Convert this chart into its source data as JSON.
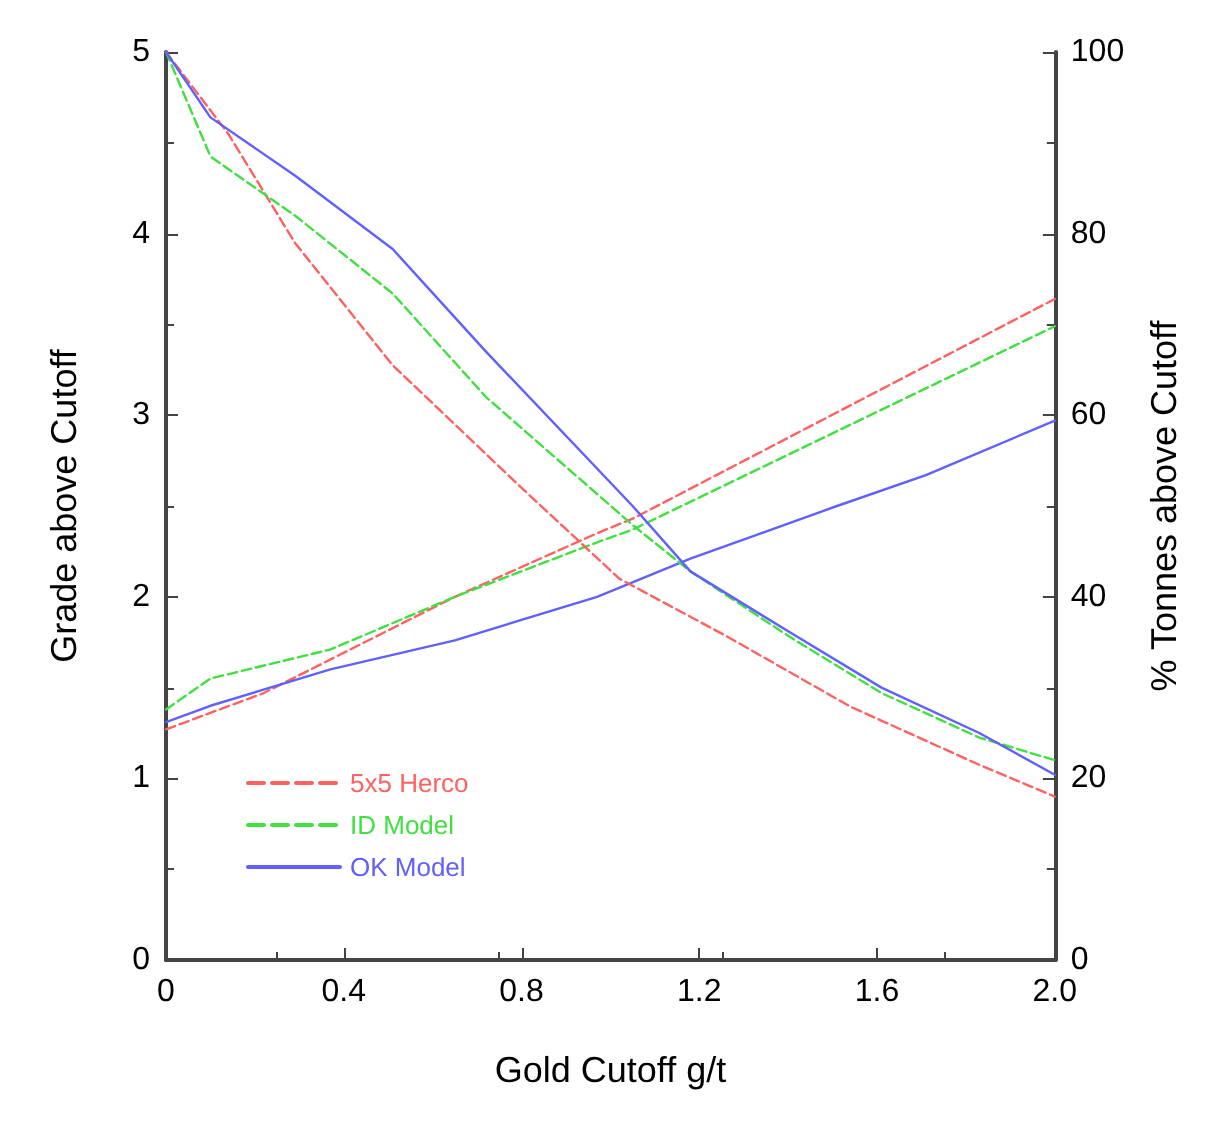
{
  "chart_data": {
    "type": "line",
    "xlabel": "Gold Cutoff g/t",
    "ylabel": "Grade above Cutoff",
    "y2label": "% Tonnes above Cutoff",
    "xlim": [
      0,
      2
    ],
    "xticks": [
      0,
      0.4,
      0.8,
      1.2,
      1.6,
      {
        "value": 2,
        "label": "2.0"
      }
    ],
    "ylim": [
      0,
      5
    ],
    "yticks": [
      0,
      1,
      2,
      3,
      4,
      5
    ],
    "y2lim": [
      0,
      100
    ],
    "y2ticks": [
      0,
      20,
      40,
      60,
      80,
      100
    ],
    "grid": false,
    "legend": "bottom left",
    "marker": "none",
    "series": [
      {
        "name": "5x5 Herco",
        "color": "#ff6060",
        "line_style": "dashed",
        "axis": "y",
        "x": [
          0,
          0.22,
          0.65,
          0.97,
          1.05,
          2
        ],
        "values": [
          1.27,
          1.47,
          2.0,
          2.35,
          2.43,
          3.64
        ]
      },
      {
        "name": "ID Model",
        "color": "#40e040",
        "line_style": "dashed",
        "axis": "y",
        "x": [
          0,
          0.1,
          0.37,
          0.65,
          0.97,
          1.05,
          2
        ],
        "values": [
          1.38,
          1.55,
          1.71,
          2.0,
          2.3,
          2.37,
          3.49
        ]
      },
      {
        "name": "OK Model",
        "color": "#6060ff",
        "line_style": "solid",
        "axis": "y",
        "x": [
          0,
          0.1,
          0.37,
          0.65,
          0.97,
          1.18,
          1.51,
          1.71,
          2
        ],
        "values": [
          1.31,
          1.4,
          1.6,
          1.76,
          2.0,
          2.21,
          2.5,
          2.67,
          2.97
        ]
      },
      {
        "color": "#ff6060",
        "line_style": "dashed",
        "axis": "y2",
        "x": [
          0,
          0.14,
          0.29,
          0.51,
          0.8,
          1.02,
          1.26,
          1.54,
          1.83,
          2
        ],
        "values": [
          100,
          91,
          79,
          65.5,
          52,
          42,
          35.7,
          27.9,
          21.5,
          18
        ]
      },
      {
        "color": "#40e040",
        "line_style": "dashed",
        "axis": "y2",
        "x": [
          0,
          0.1,
          0.29,
          0.51,
          0.72,
          1.05,
          1.18,
          1.4,
          1.61,
          1.83,
          2
        ],
        "values": [
          100,
          88.5,
          82,
          73.4,
          62,
          47.9,
          42.8,
          35.7,
          29.4,
          24.5,
          22
        ]
      },
      {
        "color": "#6060ff",
        "line_style": "solid",
        "axis": "y2",
        "x": [
          0,
          0.1,
          0.29,
          0.51,
          0.72,
          1.05,
          1.18,
          1.4,
          1.61,
          1.83,
          2
        ],
        "values": [
          100,
          92.8,
          86.4,
          78.3,
          67,
          50,
          42.8,
          36.2,
          30,
          25,
          20.4
        ]
      }
    ]
  }
}
